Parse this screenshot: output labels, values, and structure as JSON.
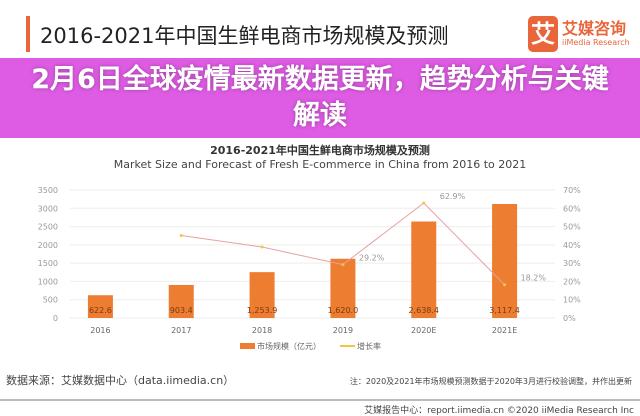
{
  "header": {
    "title": "2016-2021年中国生鲜电商市场规模及预测",
    "logo_mark": "艾",
    "logo_cn": "艾媒咨询",
    "logo_en": "iiMedia Research"
  },
  "chart_data": {
    "type": "bar",
    "title": "2016-2021年中国生鲜电商市场规模及预测",
    "subtitle": "Market Size and Forecast of Fresh E-commerce  in China from 2016 to 2021",
    "categories": [
      "2016",
      "2017",
      "2018",
      "2019",
      "2020E",
      "2021E"
    ],
    "series": [
      {
        "name": "市场规模（亿元）",
        "type": "bar",
        "values": [
          622.6,
          903.4,
          1253.9,
          1620.0,
          2638.4,
          3117.4
        ],
        "labels": [
          "622.6",
          "903.4",
          "1,253.9",
          "1,620.0",
          "2,638.4",
          "3,117.4"
        ],
        "color": "#ed7d31"
      },
      {
        "name": "增长率",
        "type": "line",
        "axis": "right",
        "values": [
          null,
          45.1,
          38.8,
          29.2,
          62.9,
          18.2
        ],
        "labels": [
          "",
          "",
          "",
          "29.2%",
          "62.9%",
          "18.2%"
        ],
        "color": "#f4c542"
      }
    ],
    "ylim": [
      0,
      3500
    ],
    "yticks": [
      "0",
      "500",
      "1000",
      "1500",
      "2000",
      "2500",
      "3000",
      "3500"
    ],
    "y2lim": [
      0,
      70
    ],
    "y2ticks": [
      "0%",
      "10%",
      "20%",
      "30%",
      "40%",
      "50%",
      "60%",
      "70%"
    ],
    "grid": true,
    "legend": "bottom"
  },
  "banner": {
    "text": "2月6日全球疫情最新数据更新，趋势分析与关键解读",
    "color": "#da46e0"
  },
  "footer": {
    "source": "数据来源：艾媒数据中心（data.iimedia.cn）",
    "note": "注：2020及2021年市场规模预测数据于2020年3月进行校验调整，并作出更新",
    "credit": "艾媒报告中心：report.iimedia.cn  ©2020  iiMedia Research Inc"
  }
}
